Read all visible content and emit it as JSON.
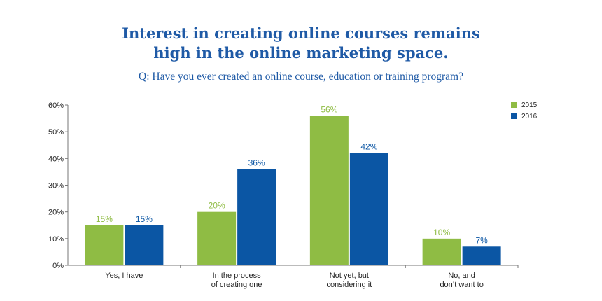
{
  "chart_data": {
    "type": "bar",
    "title": [
      "Interest in creating online courses remains",
      "high in the online marketing space."
    ],
    "subtitle": "Q: Have you ever created an online course, education or training program?",
    "categories": [
      [
        "Yes, I have"
      ],
      [
        "In the process",
        "of creating one"
      ],
      [
        "Not yet, but",
        "considering it"
      ],
      [
        "No, and",
        "don’t want to"
      ]
    ],
    "series": [
      {
        "name": "2015",
        "values": [
          15,
          20,
          56,
          10
        ],
        "labels": [
          "15%",
          "20%",
          "56%",
          "10%"
        ],
        "color": "#8fbc44"
      },
      {
        "name": "2016",
        "values": [
          15,
          36,
          42,
          7
        ],
        "labels": [
          "15%",
          "36%",
          "42%",
          "7%"
        ],
        "color": "#0b56a4"
      }
    ],
    "ylim": [
      0,
      60
    ],
    "yticks": [
      0,
      10,
      20,
      30,
      40,
      50,
      60
    ],
    "ytick_labels": [
      "0%",
      "10%",
      "20%",
      "30%",
      "40%",
      "50%",
      "60%"
    ],
    "legend_position": "top-right",
    "grid": false
  }
}
